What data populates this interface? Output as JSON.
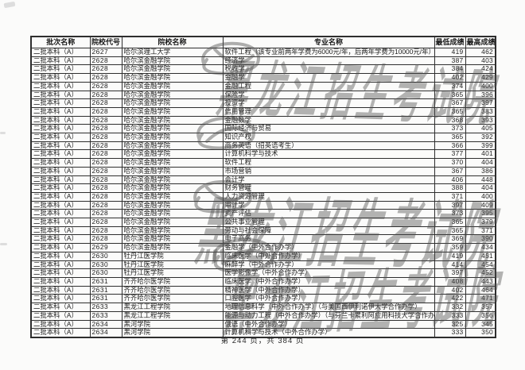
{
  "page": {
    "footer": "第 244 页，共 384 页"
  },
  "watermark": {
    "text": "黑龙江招生考试院"
  },
  "table": {
    "headers": [
      "批次名称",
      "院校代号",
      "院校名称",
      "专业名称",
      "最低成绩",
      "最高成绩"
    ],
    "rows": [
      [
        "二批本科（A）",
        "2627",
        "哈尔滨理工大学",
        "软件工程（该专业前两年学费为6000元/年，后两年学费为10000元/年）",
        "419",
        "462"
      ],
      [
        "二批本科（A）",
        "2628",
        "哈尔滨金融学院",
        "经济学",
        "387",
        "403"
      ],
      [
        "二批本科（A）",
        "2628",
        "哈尔滨金融学院",
        "税收学",
        "384",
        "424"
      ],
      [
        "二批本科（A）",
        "2628",
        "哈尔滨金融学院",
        "金融学",
        "402",
        "429"
      ],
      [
        "二批本科（A）",
        "2628",
        "哈尔滨金融学院",
        "金融工程",
        "374",
        "400"
      ],
      [
        "二批本科（A）",
        "2628",
        "哈尔滨金融学院",
        "保险学",
        "365",
        "396"
      ],
      [
        "二批本科（A）",
        "2628",
        "哈尔滨金融学院",
        "投资学",
        "367",
        "397"
      ],
      [
        "二批本科（A）",
        "2628",
        "哈尔滨金融学院",
        "信用管理",
        "365",
        "383"
      ],
      [
        "二批本科（A）",
        "2628",
        "哈尔滨金融学院",
        "金融数学",
        "368",
        "393"
      ],
      [
        "二批本科（A）",
        "2628",
        "哈尔滨金融学院",
        "国际经济与贸易",
        "373",
        "405"
      ],
      [
        "二批本科（A）",
        "2628",
        "哈尔滨金融学院",
        "知识产权",
        "365",
        "392"
      ],
      [
        "二批本科（A）",
        "2628",
        "哈尔滨金融学院",
        "商务英语（招英语考生）",
        "366",
        "399"
      ],
      [
        "二批本科（A）",
        "2628",
        "哈尔滨金融学院",
        "计算机科学与技术",
        "377",
        "401"
      ],
      [
        "二批本科（A）",
        "2628",
        "哈尔滨金融学院",
        "软件工程",
        "370",
        "404"
      ],
      [
        "二批本科（A）",
        "2628",
        "哈尔滨金融学院",
        "市场营销",
        "367",
        "386"
      ],
      [
        "二批本科（A）",
        "2628",
        "哈尔滨金融学院",
        "会计学",
        "406",
        "448"
      ],
      [
        "二批本科（A）",
        "2628",
        "哈尔滨金融学院",
        "财务管理",
        "388",
        "404"
      ],
      [
        "二批本科（A）",
        "2628",
        "哈尔滨金融学院",
        "人力资源管理",
        "371",
        "400"
      ],
      [
        "二批本科（A）",
        "2628",
        "哈尔滨金融学院",
        "审计学",
        "397",
        "409"
      ],
      [
        "二批本科（A）",
        "2628",
        "哈尔滨金融学院",
        "资产评估",
        "373",
        "395"
      ],
      [
        "二批本科（A）",
        "2628",
        "哈尔滨金融学院",
        "公共事业管理",
        "365",
        "379"
      ],
      [
        "二批本科（A）",
        "2628",
        "哈尔滨金融学院",
        "劳动与社会保障",
        "365",
        "371"
      ],
      [
        "二批本科（A）",
        "2628",
        "哈尔滨金融学院",
        "电子商务",
        "369",
        "390"
      ],
      [
        "二批本科（A）",
        "2629",
        "哈尔滨金融学院",
        "金融学（中外合作办学）",
        "359",
        "434"
      ],
      [
        "二批本科（A）",
        "2630",
        "牡丹江医学院",
        "临床医学（中外合作办学）",
        "419",
        "451"
      ],
      [
        "二批本科（A）",
        "2630",
        "牡丹江医学院",
        "麻醉学（中外合作办学）",
        "414",
        "454"
      ],
      [
        "二批本科（A）",
        "2630",
        "牡丹江医学院",
        "医学影像学（中外合作办学）",
        "397",
        "452"
      ],
      [
        "二批本科（A）",
        "2631",
        "齐齐哈尔医学院",
        "临床医学（中外合作办学）",
        "408",
        "443"
      ],
      [
        "二批本科（A）",
        "2631",
        "齐齐哈尔医学院",
        "精神医学（中外合作办学）",
        "402",
        "464"
      ],
      [
        "二批本科（A）",
        "2631",
        "齐齐哈尔医学院",
        "口腔医学（中外合作办学）",
        "422",
        "471"
      ],
      [
        "二批本科（A）",
        "2633",
        "黑龙江工程学院",
        "地理信息科学（中外合作办学）（与美国西伊利诺伊大学合作办学）",
        "332",
        "357"
      ],
      [
        "二批本科（A）",
        "2633",
        "黑龙江工程学院",
        "能源与动力工程（中外合作办学）（与芬兰卡累利阿应用科技大学合作办学）",
        "333",
        "356"
      ],
      [
        "二批本科（A）",
        "2634",
        "黑河学院",
        "俄语（中外合作办学）",
        "325",
        "345"
      ],
      [
        "二批本科（A）",
        "2634",
        "黑河学院",
        "计算机科学与技术（中外合作办学）",
        "333",
        "350"
      ]
    ]
  }
}
